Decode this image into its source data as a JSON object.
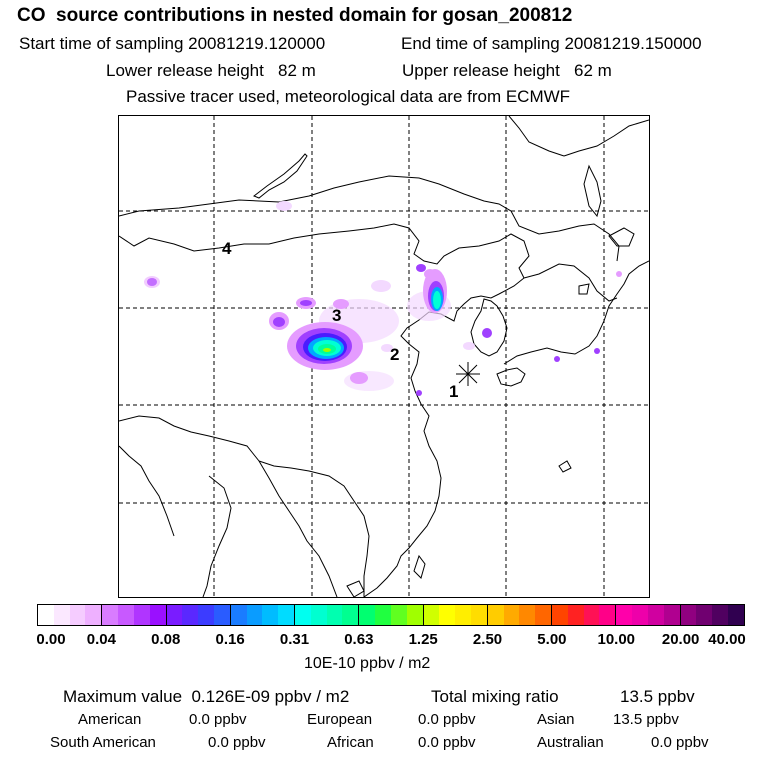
{
  "header": {
    "title": "CO  source contributions in nested domain for gosan_200812",
    "start_time": "Start time of sampling 20081219.120000",
    "end_time": "End time of sampling 20081219.150000",
    "lower_height": "Lower release height   82 m",
    "upper_height": "Upper release height   62 m",
    "tracer_note": "Passive tracer used, meteorological data are from ECMWF"
  },
  "map": {
    "region_labels": [
      "4",
      "3",
      "2",
      "1"
    ],
    "receptor_marker": "star-marker",
    "plume_colors": [
      "#f3d9ff",
      "#e59cff",
      "#a040ff",
      "#4a1cff",
      "#00a8ff",
      "#00ffd5",
      "#00ff9a",
      "#9cff00"
    ]
  },
  "colorbar": {
    "ticks": [
      "0.00",
      "0.04",
      "0.08",
      "0.16",
      "0.31",
      "0.63",
      "1.25",
      "2.50",
      "5.00",
      "10.00",
      "20.00",
      "40.00"
    ],
    "colors": [
      "#ffffff",
      "#fbe8ff",
      "#f5ccff",
      "#eeb0ff",
      "#d97cff",
      "#c859ff",
      "#b035ff",
      "#9a10ff",
      "#7a1cff",
      "#5a28ff",
      "#3c3cff",
      "#2a5cff",
      "#1a7cff",
      "#0a9cff",
      "#00bcff",
      "#00dcff",
      "#00fff0",
      "#00ffd0",
      "#00ffb0",
      "#00ff90",
      "#00ff70",
      "#20ff40",
      "#60ff20",
      "#a0ff00",
      "#d0ff00",
      "#ffff00",
      "#ffee00",
      "#ffdd00",
      "#ffcc00",
      "#ffaa00",
      "#ff8800",
      "#ff6600",
      "#ff4400",
      "#ff2222",
      "#ff1155",
      "#ff0088",
      "#ff00aa",
      "#ee00aa",
      "#d000a0",
      "#b00090",
      "#900080",
      "#700070",
      "#500060",
      "#300050"
    ],
    "units": "10E-10 ppbv / m2"
  },
  "stats": {
    "max_value": "Maximum value  0.126E-09 ppbv / m2",
    "total_mixing": "Total mixing ratio",
    "total_value": "13.5 ppbv",
    "american_label": "American",
    "american_value": "0.0 ppbv",
    "european_label": "European",
    "european_value": "0.0 ppbv",
    "asian_label": "Asian",
    "asian_value": "13.5 ppbv",
    "south_american_label": "South American",
    "south_american_value": "0.0 ppbv",
    "african_label": "African",
    "african_value": "0.0 ppbv",
    "australian_label": "Australian",
    "australian_value": "0.0 ppbv"
  }
}
